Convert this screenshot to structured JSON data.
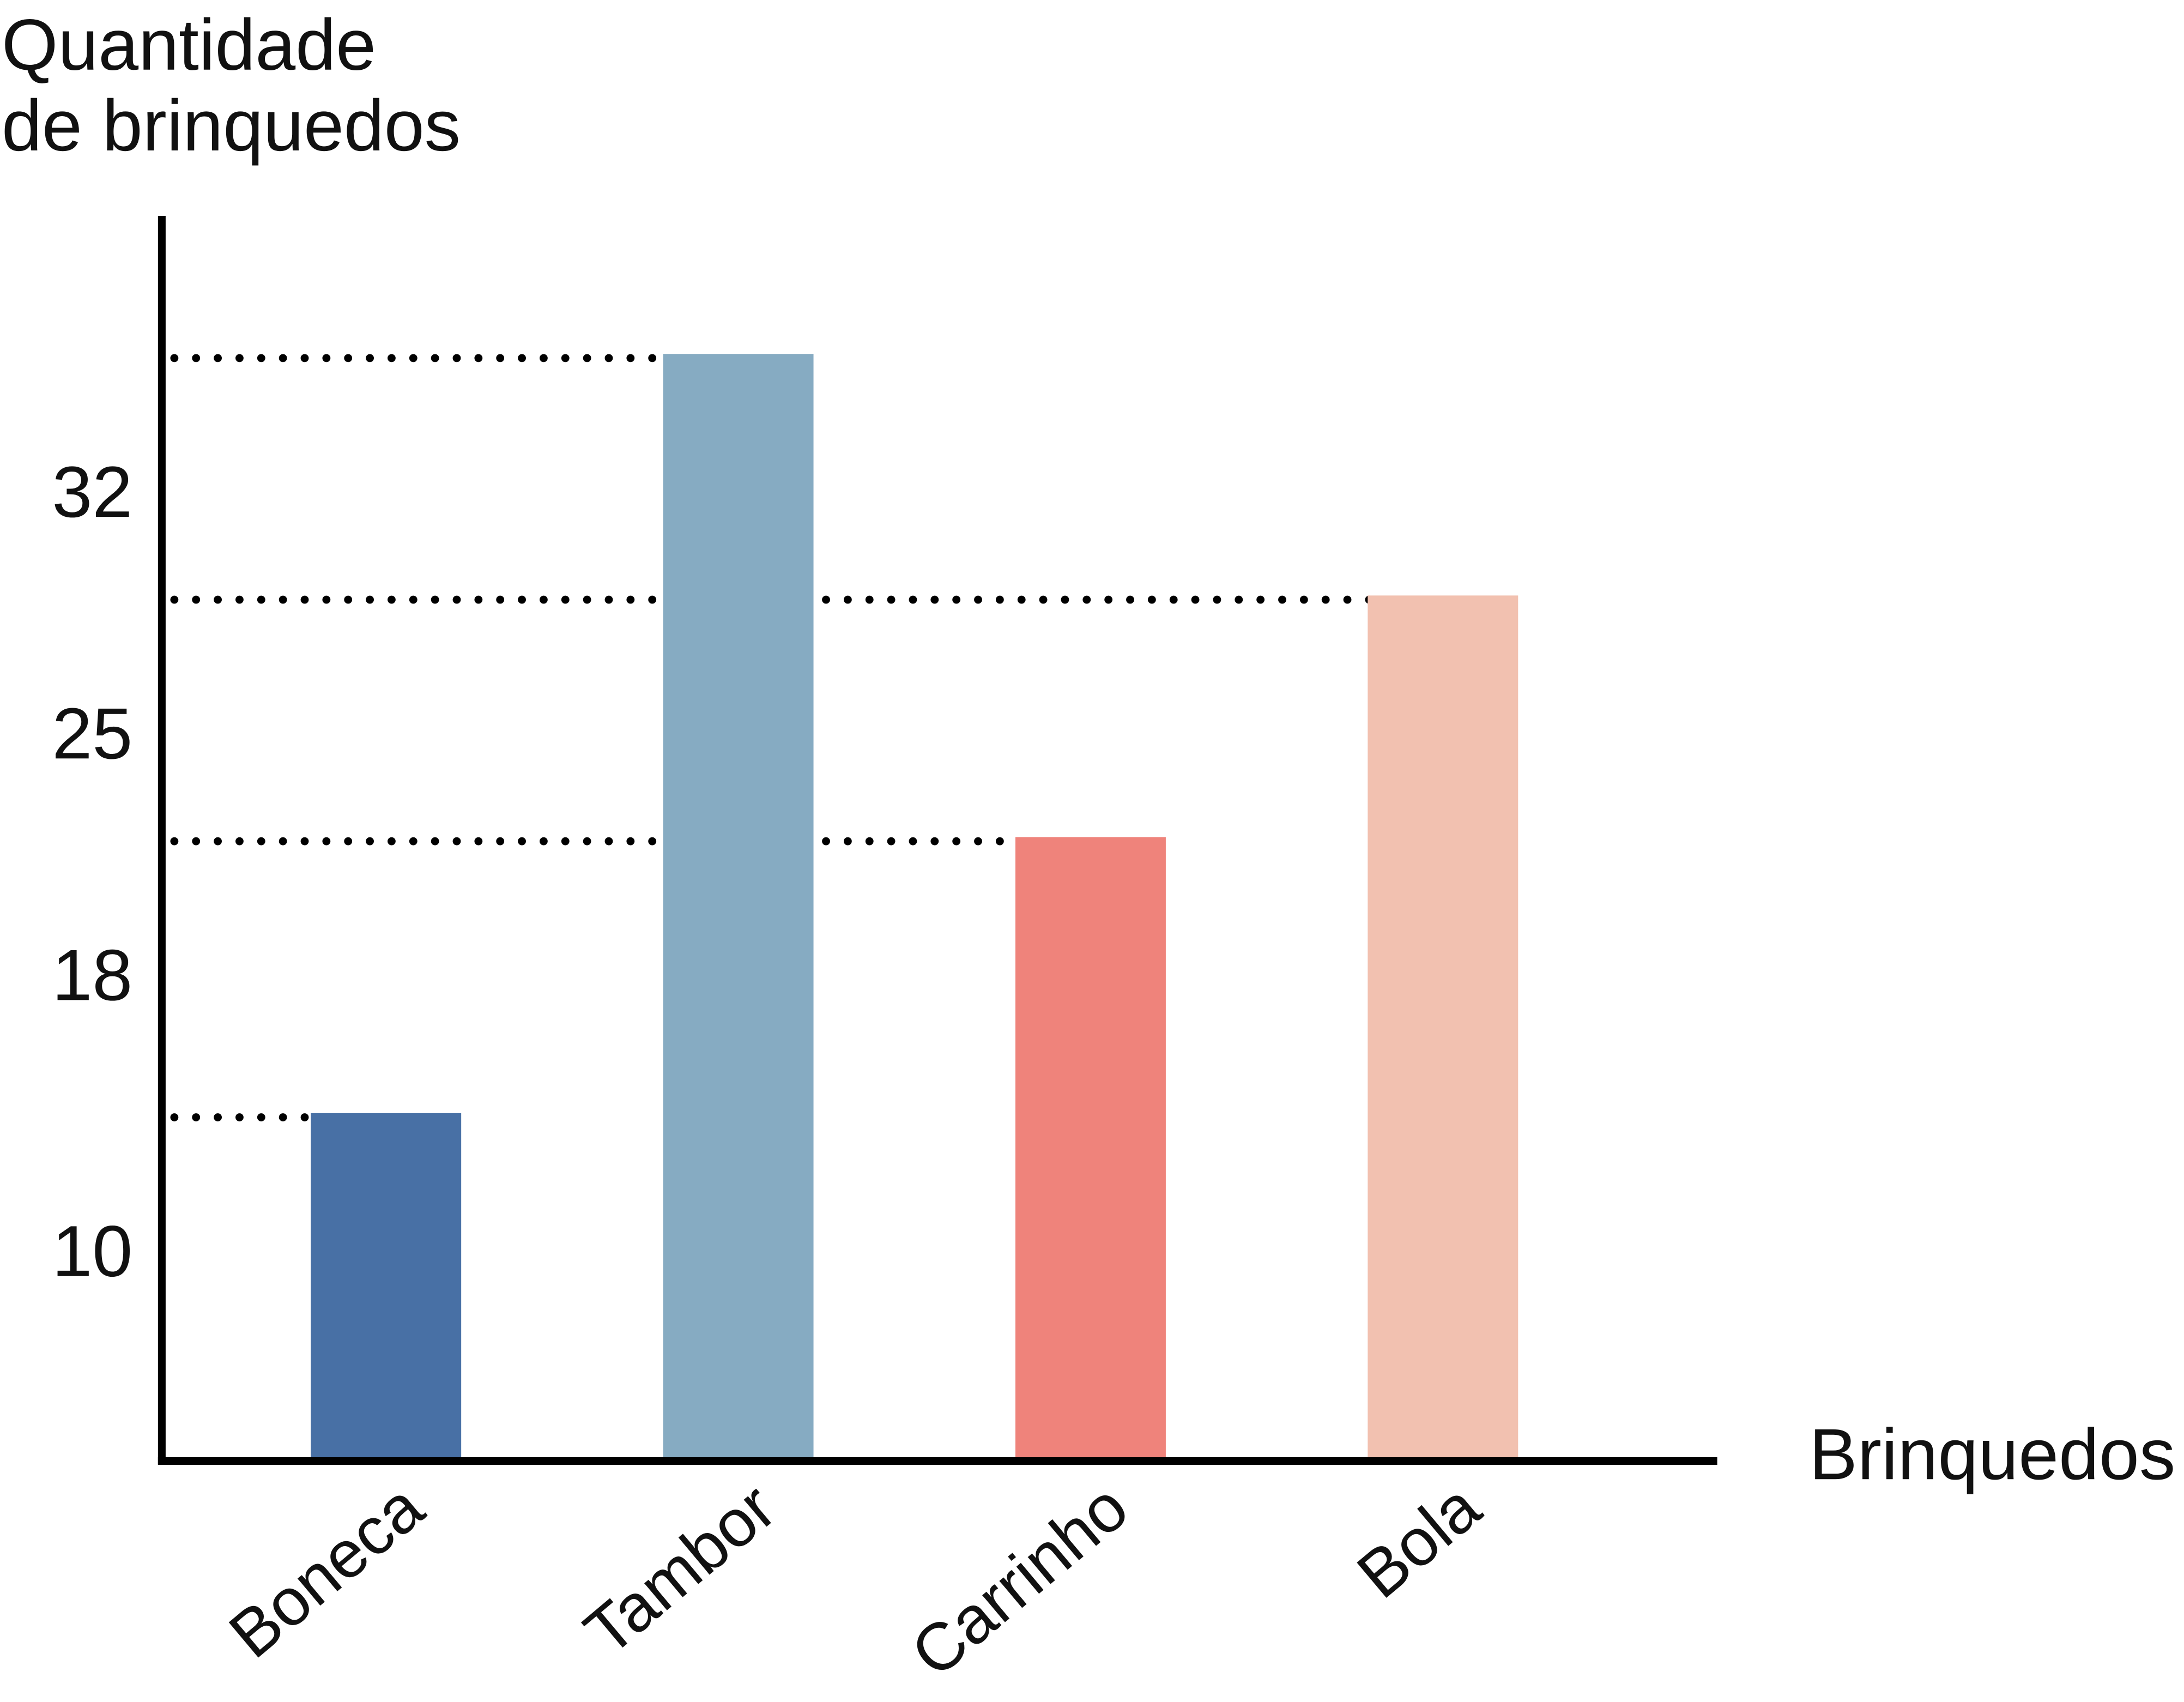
{
  "chart_data": {
    "type": "bar",
    "xlabel": "Brinquedos",
    "ylabel": [
      "Quantidade",
      "de brinquedos"
    ],
    "categories": [
      "Boneca",
      "Tambor",
      "Carrinho",
      "Bola"
    ],
    "values": [
      10,
      32,
      18,
      25
    ],
    "colors": [
      "#4870A5",
      "#86ABC2",
      "#EF837B",
      "#F2C1B0"
    ],
    "yticks": [
      32,
      25,
      18,
      10
    ],
    "ylim": [
      0,
      36
    ],
    "grid": false
  }
}
